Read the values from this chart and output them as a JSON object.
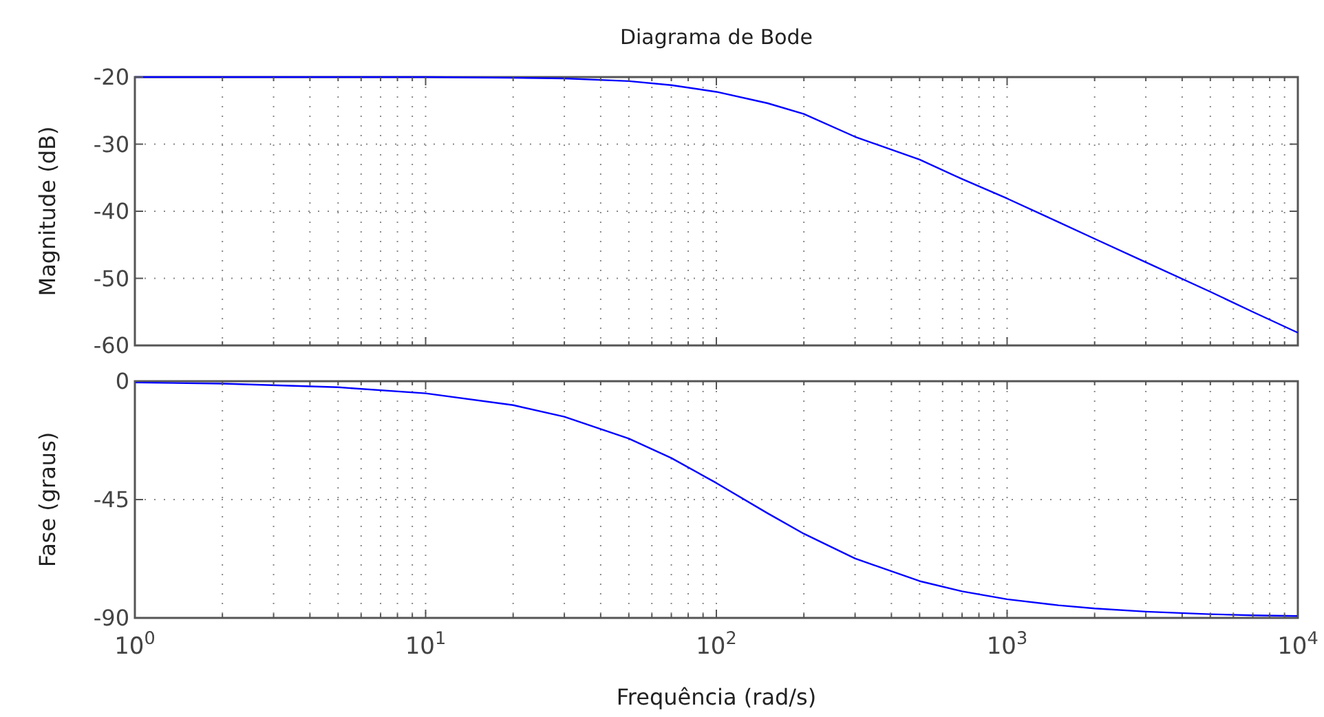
{
  "chart_data": [
    {
      "type": "line",
      "title": "Diagrama de Bode",
      "ylabel": "Magnitude (dB)",
      "log": "x",
      "grid": true,
      "tick_labels": "y",
      "x": [
        1,
        2,
        5,
        10,
        20,
        30,
        50,
        70,
        100,
        150,
        200,
        300,
        500,
        700,
        1000,
        1500,
        2000,
        3000,
        5000,
        7000,
        10000
      ],
      "series": [
        {
          "color": "#0000ff",
          "values": [
            -20.0,
            -20.0,
            -20.0,
            -20.0,
            -20.1,
            -20.2,
            -20.6,
            -21.2,
            -22.2,
            -23.9,
            -25.5,
            -28.9,
            -32.3,
            -35.2,
            -38.1,
            -41.6,
            -44.1,
            -47.6,
            -52.0,
            -55.0,
            -58.1
          ]
        }
      ],
      "xlim": [
        1,
        10000
      ],
      "xticks": [
        {
          "value": 1,
          "label": null
        },
        {
          "value": 10,
          "label": null
        },
        {
          "value": 100,
          "label": null
        },
        {
          "value": 1000,
          "label": null
        },
        {
          "value": 10000,
          "label": null
        }
      ],
      "ylim": [
        -60,
        -20
      ],
      "yticks": [
        -60,
        -50,
        -40,
        -30,
        -20
      ]
    },
    {
      "type": "line",
      "xlabel": "Frequência (rad/s)",
      "ylabel": "Fase (graus)",
      "log": "x",
      "grid": true,
      "x": [
        1,
        2,
        5,
        10,
        20,
        30,
        50,
        70,
        100,
        150,
        200,
        300,
        500,
        700,
        1000,
        1500,
        2000,
        3000,
        5000,
        7000,
        10000
      ],
      "series": [
        {
          "color": "#0000ff",
          "values": [
            -0.5,
            -0.9,
            -2.3,
            -4.6,
            -9.1,
            -13.5,
            -21.8,
            -29.2,
            -38.7,
            -50.2,
            -58.0,
            -67.4,
            -76.0,
            -79.9,
            -82.9,
            -85.2,
            -86.4,
            -87.6,
            -88.6,
            -89.0,
            -89.3
          ]
        }
      ],
      "xlim": [
        1,
        10000
      ],
      "xticks": [
        {
          "value": 1,
          "label": "10$^{0}$"
        },
        {
          "value": 10,
          "label": "10$^{1}$"
        },
        {
          "value": 100,
          "label": "10$^{2}$"
        },
        {
          "value": 1000,
          "label": "10$^{3}$"
        },
        {
          "value": 10000,
          "label": "10$^{4}$"
        }
      ],
      "ylim": [
        -90,
        0
      ],
      "yticks": [
        -90,
        -45,
        0
      ]
    }
  ]
}
